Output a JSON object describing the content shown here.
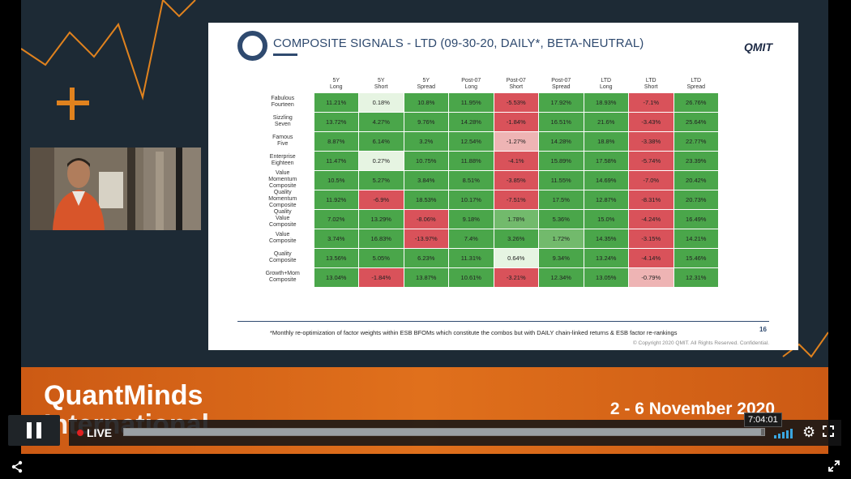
{
  "slide": {
    "title": "COMPOSITE SIGNALS - LTD (09-30-20, DAILY*, BETA-NEUTRAL)",
    "logo": "QMIT",
    "columns": [
      "5Y\nLong",
      "5Y\nShort",
      "5Y\nSpread",
      "Post-07\nLong",
      "Post-07\nShort",
      "Post-07\nSpread",
      "LTD\nLong",
      "LTD\nShort",
      "LTD\nSpread"
    ],
    "rows": [
      {
        "label": "Fabulous\nFourteen",
        "cells": [
          "11.21%",
          "0.18%",
          "10.8%",
          "11.95%",
          "-5.53%",
          "17.92%",
          "18.93%",
          "-7.1%",
          "26.76%"
        ],
        "tones": [
          "g",
          "l",
          "g",
          "g",
          "r",
          "g",
          "g",
          "r",
          "g"
        ]
      },
      {
        "label": "Sizzling\nSeven",
        "cells": [
          "13.72%",
          "4.27%",
          "9.76%",
          "14.28%",
          "-1.84%",
          "16.51%",
          "21.6%",
          "-3.43%",
          "25.64%"
        ],
        "tones": [
          "g",
          "g",
          "g",
          "g",
          "r",
          "g",
          "g",
          "r",
          "g"
        ]
      },
      {
        "label": "Famous\nFive",
        "cells": [
          "8.87%",
          "6.14%",
          "3.2%",
          "12.54%",
          "-1.27%",
          "14.28%",
          "18.8%",
          "-3.38%",
          "22.77%"
        ],
        "tones": [
          "g",
          "g",
          "g",
          "g",
          "p",
          "g",
          "g",
          "r",
          "g"
        ]
      },
      {
        "label": "Enterprise\nEighteen",
        "cells": [
          "11.47%",
          "0.27%",
          "10.75%",
          "11.88%",
          "-4.1%",
          "15.89%",
          "17.58%",
          "-5.74%",
          "23.39%"
        ],
        "tones": [
          "g",
          "l",
          "g",
          "g",
          "r",
          "g",
          "g",
          "r",
          "g"
        ]
      },
      {
        "label": "Value\nMomentum\nComposite",
        "cells": [
          "10.5%",
          "5.27%",
          "3.84%",
          "8.51%",
          "-3.85%",
          "11.55%",
          "14.69%",
          "-7.0%",
          "20.42%"
        ],
        "tones": [
          "g",
          "g",
          "g",
          "g",
          "r",
          "g",
          "g",
          "r",
          "g"
        ]
      },
      {
        "label": "Quality\nMomentum\nComposite",
        "cells": [
          "11.92%",
          "-6.9%",
          "18.53%",
          "10.17%",
          "-7.51%",
          "17.5%",
          "12.87%",
          "-8.31%",
          "20.73%"
        ],
        "tones": [
          "g",
          "r",
          "g",
          "g",
          "r",
          "g",
          "g",
          "r",
          "g"
        ]
      },
      {
        "label": "Quality\nValue\nComposite",
        "cells": [
          "7.02%",
          "13.29%",
          "-8.06%",
          "9.18%",
          "1.78%",
          "5.36%",
          "15.0%",
          "-4.24%",
          "16.49%"
        ],
        "tones": [
          "g",
          "g",
          "r",
          "g",
          "m",
          "g",
          "g",
          "r",
          "g"
        ]
      },
      {
        "label": "Value\nComposite",
        "cells": [
          "3.74%",
          "16.83%",
          "-13.97%",
          "7.4%",
          "3.26%",
          "1.72%",
          "14.35%",
          "-3.15%",
          "14.21%"
        ],
        "tones": [
          "g",
          "g",
          "r",
          "g",
          "g",
          "m",
          "g",
          "r",
          "g"
        ]
      },
      {
        "label": "Quality\nComposite",
        "cells": [
          "13.56%",
          "5.05%",
          "6.23%",
          "11.31%",
          "0.64%",
          "9.34%",
          "13.24%",
          "-4.14%",
          "15.46%"
        ],
        "tones": [
          "g",
          "g",
          "g",
          "g",
          "l",
          "g",
          "g",
          "r",
          "g"
        ]
      },
      {
        "label": "Growth+Mom\nComposite",
        "cells": [
          "13.04%",
          "-1.84%",
          "13.87%",
          "10.61%",
          "-3.21%",
          "12.34%",
          "13.05%",
          "-0.79%",
          "12.31%"
        ],
        "tones": [
          "g",
          "r",
          "g",
          "g",
          "r",
          "g",
          "g",
          "p",
          "g"
        ]
      }
    ],
    "footnote": "*Monthly re-optimization of factor weights within ESB BFOMs which constitute the combos but with DAILY chain-linked returns & ESB factor re-rankings",
    "page_number": "16",
    "copyright": "© Copyright 2020 QMIT. All Rights Reserved. Confidential."
  },
  "banner": {
    "brand_line1": "QuantMinds",
    "brand_line2": "International",
    "dates": "2 - 6 November 2020"
  },
  "player": {
    "live_label": "LIVE",
    "time_tooltip": "7:04:01",
    "progress": 0.995
  },
  "colors": {
    "g": "#4aa64a",
    "r": "#d9525a",
    "l": "#e6f4e2",
    "p": "#eeb4b4",
    "m": "#72ba6c"
  }
}
